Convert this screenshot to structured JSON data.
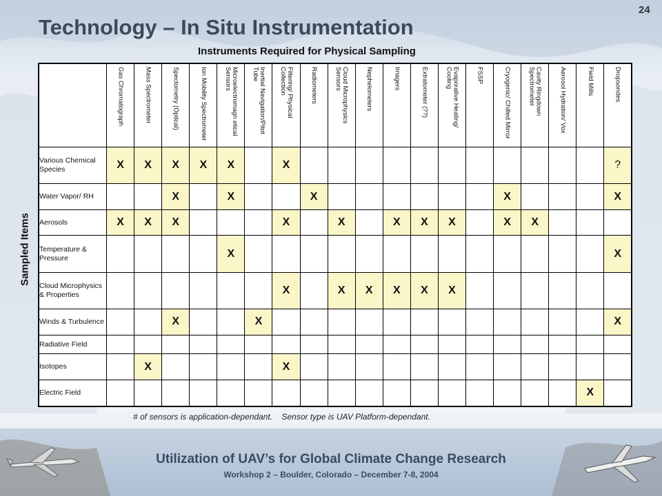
{
  "page_number": "24",
  "title": "Technology – In Situ Instrumentation",
  "subtitle": "Instruments Required for Physical Sampling",
  "side_label": "Sampled Items",
  "columns": [
    "Gas Chromatograph",
    "Mass Spectrometer",
    "Spectometry (Optical)",
    "Ion Mobility Spectrometer",
    "Microelectromagn etical Sensors",
    "Inertial Navigation/Pitot Tube",
    "Filtering/ Physical Collection",
    "Radiometers",
    "Cloud Microphysics Sensors",
    "Nephelometers",
    "Imagers",
    "Extratometer (??)",
    "Evaporative Heating/ Cooling",
    "FSSP",
    "Cryogenic/ Chilled Mirror",
    "Cavity Ringdown Spectrometer",
    "Aerosol Hydration/ Vox",
    "Field Mills",
    "Dropsondes"
  ],
  "rows": [
    {
      "label": "Various Chemical Species",
      "cells": [
        "X",
        "X",
        "X",
        "X",
        "X",
        "",
        "X",
        "",
        "",
        "",
        "",
        "",
        "",
        "",
        "",
        "",
        "",
        "",
        "?"
      ]
    },
    {
      "label": "Water Vapor/ RH",
      "cells": [
        "",
        "",
        "X",
        "",
        "X",
        "",
        "",
        "X",
        "",
        "",
        "",
        "",
        "",
        "",
        "X",
        "",
        "",
        "",
        "X"
      ]
    },
    {
      "label": "Aerosols",
      "cells": [
        "X",
        "X",
        "X",
        "",
        "",
        "",
        "X",
        "",
        "X",
        "",
        "X",
        "X",
        "X",
        "",
        "X",
        "X",
        "",
        "",
        ""
      ]
    },
    {
      "label": "Temperature & Pressure",
      "cells": [
        "",
        "",
        "",
        "",
        "X",
        "",
        "",
        "",
        "",
        "",
        "",
        "",
        "",
        "",
        "",
        "",
        "",
        "",
        "X"
      ]
    },
    {
      "label": "Cloud Microphysics & Properties",
      "cells": [
        "",
        "",
        "",
        "",
        "",
        "",
        "X",
        "",
        "X",
        "X",
        "X",
        "X",
        "X",
        "",
        "",
        "",
        "",
        "",
        ""
      ]
    },
    {
      "label": "Winds & Turbulence",
      "cells": [
        "",
        "",
        "X",
        "",
        "",
        "X",
        "",
        "",
        "",
        "",
        "",
        "",
        "",
        "",
        "",
        "",
        "",
        "",
        "X"
      ]
    },
    {
      "label": "Radiative Field",
      "cells": [
        "",
        "",
        "",
        "",
        "",
        "",
        "",
        "",
        "",
        "",
        "",
        "",
        "",
        "",
        "",
        "",
        "",
        "",
        ""
      ]
    },
    {
      "label": "Isotopes",
      "cells": [
        "",
        "X",
        "",
        "",
        "",
        "",
        "X",
        "",
        "",
        "",
        "",
        "",
        "",
        "",
        "",
        "",
        "",
        "",
        ""
      ]
    },
    {
      "label": "Electric Field",
      "cells": [
        "",
        "",
        "",
        "",
        "",
        "",
        "",
        "",
        "",
        "",
        "",
        "",
        "",
        "",
        "",
        "",
        "",
        "X",
        ""
      ]
    }
  ],
  "note": "# of sensors is application-dependant.    Sensor type is UAV Platform-dependant.",
  "footer": {
    "title": "Utilization of UAV’s for Global Climate Change Research",
    "subtitle": "Workshop 2 – Boulder, Colorado – December 7-8, 2004"
  },
  "colors": {
    "cell_highlight": "#fbf6c8",
    "title": "#3a4a5c",
    "footer_text": "#3b4a5e"
  }
}
